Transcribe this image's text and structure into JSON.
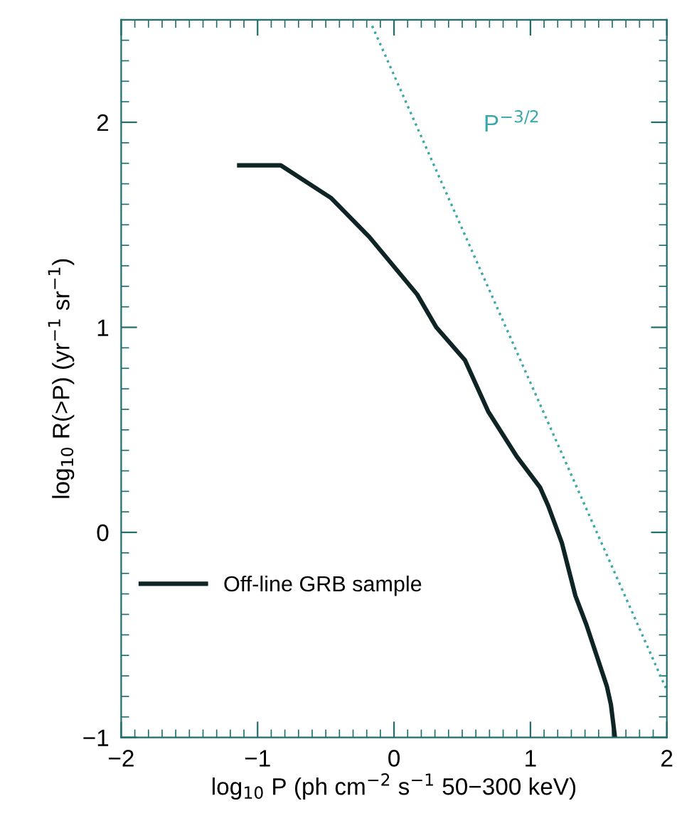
{
  "chart_data": {
    "type": "line",
    "xlabel": "log$_{10}$ P (ph cm$^{−2}$ s$^{−1}$ 50−300 keV)",
    "ylabel": "log$_{10}$ R(>P) (yr$^{−1}$ sr$^{−1}$)",
    "xlim": [
      -2,
      2
    ],
    "ylim": [
      -1,
      2.5
    ],
    "xticks": [
      -2,
      -1,
      0,
      1,
      2
    ],
    "yticks": [
      -1,
      0,
      1,
      2
    ],
    "grid": false,
    "legend": "lower left",
    "series": [
      {
        "name": "Off-line GRB sample",
        "color": "#0f2424",
        "line_style": "solid",
        "x": [
          -1.135,
          -0.83,
          -0.46,
          -0.18,
          0.17,
          0.31,
          0.52,
          0.69,
          0.9,
          1.07,
          1.13,
          1.23,
          1.33,
          1.41,
          1.49,
          1.56,
          1.59,
          1.62
        ],
        "values": [
          1.79,
          1.79,
          1.63,
          1.44,
          1.16,
          1.0,
          0.84,
          0.59,
          0.37,
          0.22,
          0.13,
          -0.05,
          -0.31,
          -0.45,
          -0.61,
          -0.75,
          -0.84,
          -1.0
        ]
      },
      {
        "name": "P$^{−3/2}$",
        "color": "#3aa8a8",
        "line_style": "dotted",
        "x": [
          -0.16,
          2.0
        ],
        "values": [
          2.47,
          -0.77
        ]
      }
    ]
  }
}
